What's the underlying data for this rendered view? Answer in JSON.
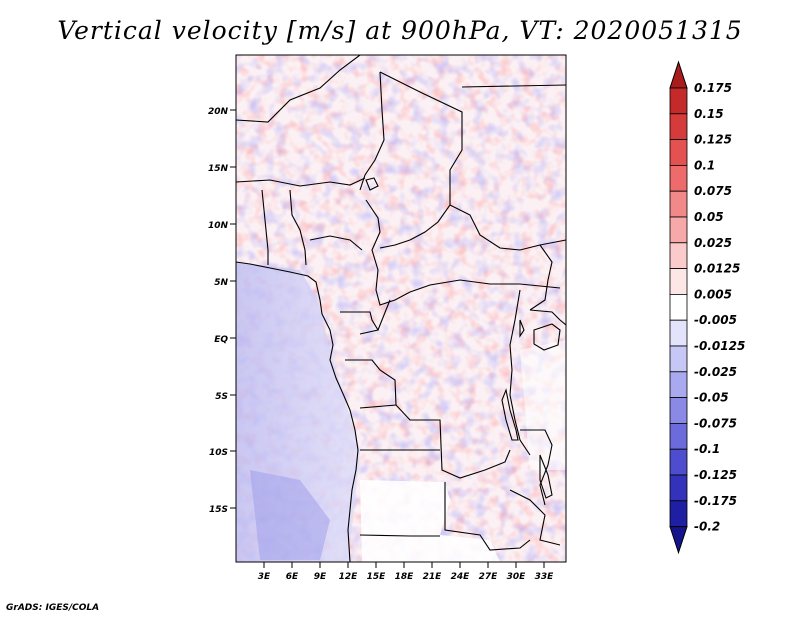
{
  "title": "Vertical velocity [m/s] at 900hPa, VT: 2020051315",
  "credit": "GrADS: IGES/COLA",
  "map": {
    "lat_labels": [
      "20N",
      "15N",
      "10N",
      "5N",
      "EQ",
      "5S",
      "10S",
      "15S"
    ],
    "lon_labels": [
      "3E",
      "6E",
      "9E",
      "12E",
      "15E",
      "18E",
      "21E",
      "24E",
      "27E",
      "30E",
      "33E"
    ]
  },
  "colorbar": {
    "labels": [
      "0.175",
      "0.15",
      "0.125",
      "0.1",
      "0.075",
      "0.05",
      "0.025",
      "0.0125",
      "0.005",
      "-0.005",
      "-0.0125",
      "-0.025",
      "-0.05",
      "-0.075",
      "-0.1",
      "-0.125",
      "-0.175",
      "-0.2"
    ],
    "colors": [
      "#aa1c1c",
      "#c42a2a",
      "#d63b3b",
      "#e35151",
      "#ed6b6b",
      "#f28989",
      "#f7a8a8",
      "#fbcaca",
      "#fde6e6",
      "#ffffff",
      "#e3e3fb",
      "#c7c7f6",
      "#a9a9ef",
      "#8a8ae6",
      "#6b6bdb",
      "#4d4dcd",
      "#3232bb",
      "#1f1fa3",
      "#16148c"
    ]
  }
}
